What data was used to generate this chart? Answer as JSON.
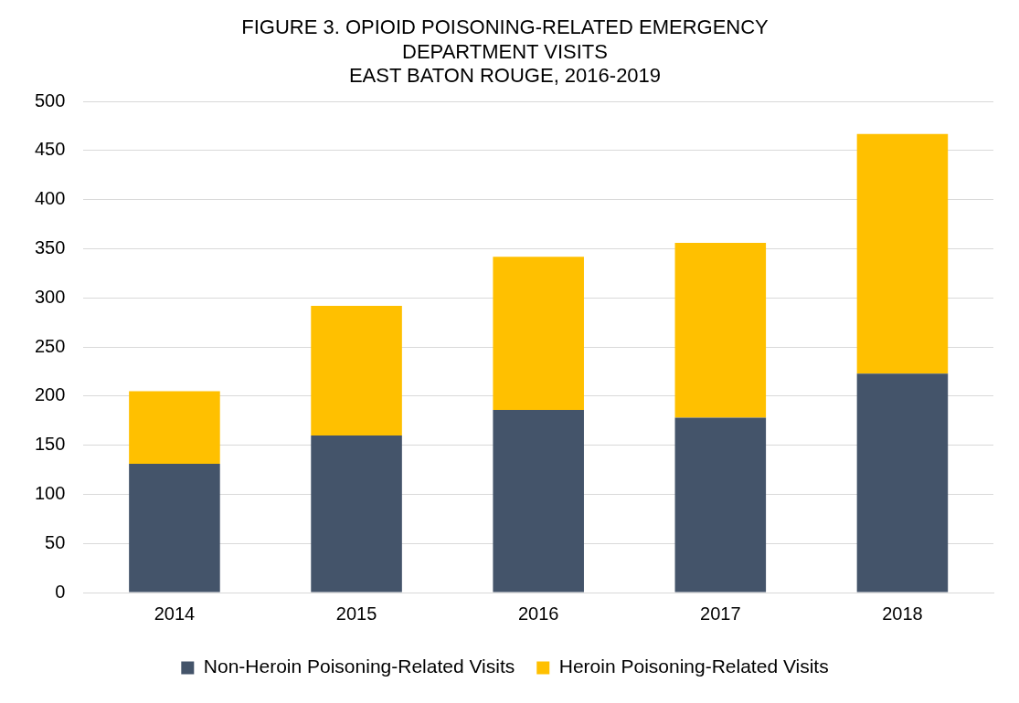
{
  "chart_data": {
    "type": "bar",
    "title": "FIGURE 3. OPIOID POISONING-RELATED EMERGENCY\nDEPARTMENT VISITS\nEAST BATON ROUGE, 2016-2019",
    "categories": [
      "2014",
      "2015",
      "2016",
      "2017",
      "2018"
    ],
    "stacked": true,
    "series": [
      {
        "name": "Non-Heroin Poisoning-Related Visits",
        "color": "#44546a",
        "values": [
          131,
          160,
          186,
          178,
          223
        ]
      },
      {
        "name": "Heroin Poisoning-Related Visits",
        "color": "#ffc000",
        "values": [
          74,
          132,
          156,
          178,
          244
        ]
      }
    ],
    "ylim": [
      0,
      500
    ],
    "yticks": [
      0,
      50,
      100,
      150,
      200,
      250,
      300,
      350,
      400,
      450,
      500
    ],
    "grid": "y",
    "legend": "bottom"
  }
}
